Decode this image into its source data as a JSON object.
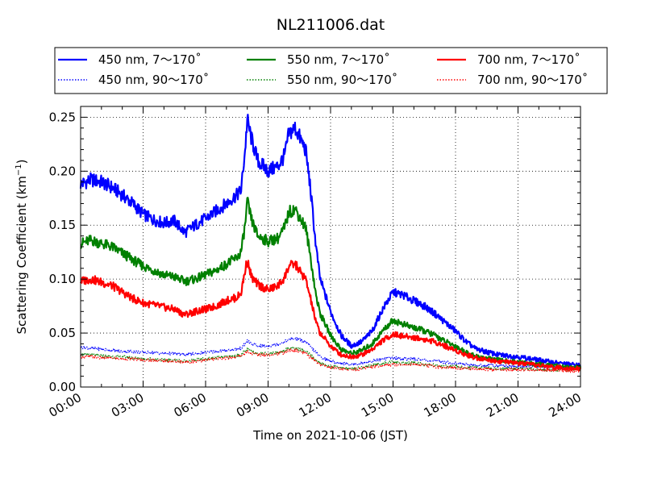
{
  "chart_data": {
    "type": "line",
    "title": "NL211006.dat",
    "xlabel": "Time on 2021-10-06 (JST)",
    "ylabel_main": "Scattering Coefficient (km",
    "ylabel_sup": "−1",
    "ylabel_end": ")",
    "xlim": [
      "00:00",
      "24:00"
    ],
    "ylim": [
      0.0,
      0.26
    ],
    "grid": true,
    "legend_position": "top",
    "x_ticks": [
      "00:00",
      "03:00",
      "06:00",
      "09:00",
      "12:00",
      "15:00",
      "18:00",
      "21:00",
      "24:00"
    ],
    "y_ticks": [
      "0.00",
      "0.05",
      "0.10",
      "0.15",
      "0.20",
      "0.25"
    ],
    "x_hours": [
      0,
      0.5,
      1,
      1.5,
      2,
      2.5,
      3,
      3.5,
      4,
      4.5,
      5,
      5.5,
      6,
      6.5,
      7,
      7.5,
      7.7,
      7.9,
      8,
      8.2,
      8.5,
      9,
      9.5,
      9.8,
      10,
      10.3,
      10.5,
      10.8,
      11,
      11.3,
      11.5,
      12,
      12.5,
      13,
      13.5,
      14,
      14.5,
      15,
      15.5,
      16,
      16.5,
      17,
      17.5,
      18,
      18.5,
      19,
      20,
      21,
      22,
      23,
      24
    ],
    "series": [
      {
        "name": "450 nm, 7～170˚",
        "color": "#0000ff",
        "style": "solid",
        "values": [
          0.188,
          0.192,
          0.19,
          0.185,
          0.178,
          0.17,
          0.16,
          0.155,
          0.152,
          0.154,
          0.143,
          0.15,
          0.156,
          0.163,
          0.17,
          0.178,
          0.182,
          0.22,
          0.248,
          0.23,
          0.21,
          0.2,
          0.205,
          0.215,
          0.235,
          0.24,
          0.232,
          0.22,
          0.19,
          0.13,
          0.1,
          0.07,
          0.048,
          0.038,
          0.042,
          0.052,
          0.072,
          0.088,
          0.085,
          0.08,
          0.075,
          0.068,
          0.06,
          0.052,
          0.042,
          0.035,
          0.03,
          0.028,
          0.025,
          0.022,
          0.02
        ]
      },
      {
        "name": "550 nm, 7～170˚",
        "color": "#008000",
        "style": "solid",
        "values": [
          0.133,
          0.136,
          0.133,
          0.13,
          0.124,
          0.118,
          0.112,
          0.108,
          0.104,
          0.102,
          0.098,
          0.1,
          0.104,
          0.108,
          0.114,
          0.12,
          0.125,
          0.15,
          0.172,
          0.155,
          0.14,
          0.135,
          0.138,
          0.148,
          0.162,
          0.165,
          0.158,
          0.148,
          0.125,
          0.085,
          0.068,
          0.048,
          0.035,
          0.031,
          0.034,
          0.04,
          0.052,
          0.062,
          0.058,
          0.055,
          0.052,
          0.048,
          0.042,
          0.038,
          0.032,
          0.028,
          0.025,
          0.023,
          0.021,
          0.019,
          0.018
        ]
      },
      {
        "name": "700 nm, 7～170˚",
        "color": "#ff0000",
        "style": "solid",
        "values": [
          0.098,
          0.1,
          0.097,
          0.094,
          0.088,
          0.082,
          0.078,
          0.076,
          0.074,
          0.072,
          0.067,
          0.07,
          0.072,
          0.075,
          0.08,
          0.083,
          0.087,
          0.108,
          0.118,
          0.102,
          0.095,
          0.09,
          0.094,
          0.102,
          0.112,
          0.114,
          0.108,
          0.1,
          0.085,
          0.06,
          0.05,
          0.038,
          0.03,
          0.028,
          0.03,
          0.035,
          0.043,
          0.049,
          0.047,
          0.046,
          0.044,
          0.042,
          0.038,
          0.034,
          0.03,
          0.027,
          0.024,
          0.022,
          0.02,
          0.018,
          0.017
        ]
      },
      {
        "name": "450 nm, 90～170˚",
        "color": "#0000ff",
        "style": "dotted",
        "values": [
          0.037,
          0.036,
          0.035,
          0.034,
          0.033,
          0.033,
          0.032,
          0.032,
          0.031,
          0.031,
          0.03,
          0.031,
          0.032,
          0.033,
          0.034,
          0.035,
          0.036,
          0.04,
          0.043,
          0.04,
          0.038,
          0.038,
          0.04,
          0.042,
          0.044,
          0.045,
          0.044,
          0.042,
          0.038,
          0.032,
          0.028,
          0.024,
          0.022,
          0.021,
          0.022,
          0.024,
          0.026,
          0.027,
          0.026,
          0.026,
          0.025,
          0.024,
          0.023,
          0.022,
          0.021,
          0.02,
          0.02,
          0.019,
          0.019,
          0.018,
          0.018
        ]
      },
      {
        "name": "550 nm, 90～170˚",
        "color": "#008000",
        "style": "dotted",
        "values": [
          0.03,
          0.03,
          0.029,
          0.028,
          0.028,
          0.027,
          0.026,
          0.026,
          0.025,
          0.025,
          0.024,
          0.025,
          0.026,
          0.027,
          0.028,
          0.029,
          0.03,
          0.033,
          0.035,
          0.033,
          0.031,
          0.031,
          0.032,
          0.034,
          0.036,
          0.036,
          0.035,
          0.033,
          0.03,
          0.025,
          0.022,
          0.019,
          0.018,
          0.017,
          0.018,
          0.02,
          0.022,
          0.023,
          0.022,
          0.022,
          0.021,
          0.02,
          0.019,
          0.019,
          0.018,
          0.018,
          0.017,
          0.017,
          0.016,
          0.016,
          0.016
        ]
      },
      {
        "name": "700 nm, 90～170˚",
        "color": "#ff0000",
        "style": "dotted",
        "values": [
          0.028,
          0.028,
          0.027,
          0.027,
          0.026,
          0.026,
          0.025,
          0.025,
          0.024,
          0.024,
          0.023,
          0.024,
          0.025,
          0.026,
          0.027,
          0.028,
          0.029,
          0.031,
          0.033,
          0.031,
          0.03,
          0.03,
          0.031,
          0.032,
          0.034,
          0.034,
          0.033,
          0.031,
          0.028,
          0.024,
          0.021,
          0.018,
          0.017,
          0.016,
          0.017,
          0.019,
          0.02,
          0.021,
          0.021,
          0.021,
          0.02,
          0.019,
          0.018,
          0.018,
          0.017,
          0.017,
          0.016,
          0.016,
          0.016,
          0.015,
          0.015
        ]
      }
    ]
  }
}
